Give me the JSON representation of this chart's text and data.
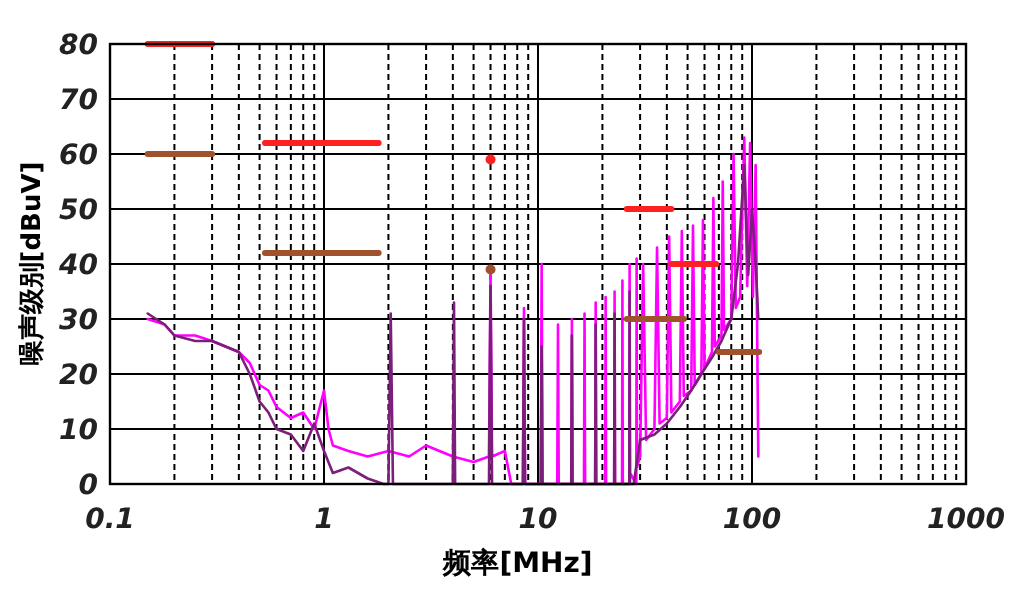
{
  "chart_data": {
    "type": "line",
    "xlabel": "频率[MHz]",
    "ylabel": "噪声级别[dBuV]",
    "log": "x",
    "grid": true,
    "xlim": [
      0.1,
      1000
    ],
    "ylim": [
      0,
      80
    ],
    "xticks": [
      0.1,
      {
        "value": 0.2,
        "label": null
      },
      {
        "value": 0.3,
        "label": null
      },
      {
        "value": 0.4,
        "label": null
      },
      {
        "value": 0.5,
        "label": null
      },
      {
        "value": 0.6,
        "label": null
      },
      {
        "value": 0.7,
        "label": null
      },
      {
        "value": 0.8,
        "label": null
      },
      {
        "value": 0.9,
        "label": null
      },
      1,
      {
        "value": 2,
        "label": null
      },
      {
        "value": 3,
        "label": null
      },
      {
        "value": 4,
        "label": null
      },
      {
        "value": 5,
        "label": null
      },
      {
        "value": 6,
        "label": null
      },
      {
        "value": 7,
        "label": null
      },
      {
        "value": 8,
        "label": null
      },
      {
        "value": 9,
        "label": null
      },
      10,
      {
        "value": 20,
        "label": null
      },
      {
        "value": 30,
        "label": null
      },
      {
        "value": 40,
        "label": null
      },
      {
        "value": 50,
        "label": null
      },
      {
        "value": 60,
        "label": null
      },
      {
        "value": 70,
        "label": null
      },
      {
        "value": 80,
        "label": null
      },
      {
        "value": 90,
        "label": null
      },
      100,
      {
        "value": 200,
        "label": null
      },
      {
        "value": 300,
        "label": null
      },
      {
        "value": 400,
        "label": null
      },
      {
        "value": 500,
        "label": null
      },
      {
        "value": 600,
        "label": null
      },
      {
        "value": 700,
        "label": null
      },
      {
        "value": 800,
        "label": null
      },
      {
        "value": 900,
        "label": null
      },
      1000
    ],
    "yticks": [
      0,
      10,
      20,
      30,
      40,
      50,
      60,
      70,
      80
    ],
    "series": [
      {
        "color": "#ff00ff",
        "x": [
          0.15,
          0.18,
          0.2,
          0.25,
          0.3,
          0.4,
          0.45,
          0.5,
          0.55,
          0.6,
          0.7,
          0.8,
          0.9,
          1.0,
          1.05,
          1.1,
          1.3,
          1.6,
          2.0,
          2.5,
          3,
          4,
          5,
          5.9,
          6.0,
          6.1,
          7,
          7.5,
          8.5,
          8.6,
          8.7,
          10.3,
          10.4,
          10.5,
          12.3,
          12.4,
          12.5,
          14.3,
          14.4,
          14.5,
          16.4,
          16.5,
          16.6,
          18.5,
          18.6,
          18.7,
          20.6,
          20.7,
          20.8,
          22.7,
          22.8,
          22.9,
          24.7,
          24.8,
          24.9,
          26.7,
          26.8,
          26.9,
          28.8,
          28.9,
          29,
          30,
          31,
          32,
          35,
          36,
          37,
          40,
          41,
          42,
          46,
          47,
          48,
          52,
          53,
          54,
          58,
          59,
          60,
          65,
          66,
          67,
          72,
          73,
          74,
          80,
          82,
          84,
          88,
          92,
          95,
          98,
          101,
          104,
          107
        ],
        "values": [
          30,
          29,
          27,
          27,
          26,
          24,
          22,
          18,
          17,
          14,
          12,
          13,
          10,
          17,
          10,
          7,
          6,
          5,
          6,
          5,
          7,
          5,
          4,
          5,
          38,
          5,
          6,
          0,
          0,
          32,
          0,
          0,
          40,
          0,
          0,
          29,
          0,
          0,
          30,
          0,
          0,
          31,
          0,
          0,
          33,
          0,
          0,
          34,
          0,
          0,
          35,
          0,
          0,
          37,
          0,
          0,
          40,
          2,
          0,
          41,
          3,
          5,
          40,
          8,
          10,
          43,
          11,
          12,
          45,
          13,
          15,
          46,
          16,
          17,
          47,
          18,
          20,
          48,
          21,
          24,
          52,
          25,
          27,
          55,
          28,
          30,
          60,
          32,
          34,
          63,
          36,
          62,
          34,
          58,
          5
        ]
      },
      {
        "color": "#7b1f7b",
        "x": [
          0.15,
          0.18,
          0.2,
          0.25,
          0.3,
          0.4,
          0.45,
          0.5,
          0.55,
          0.6,
          0.7,
          0.8,
          0.9,
          1.0,
          1.1,
          1.3,
          1.6,
          1.9,
          2.0,
          2.05,
          2.1,
          4.0,
          4.05,
          4.1,
          5.9,
          6.0,
          6.1,
          8.5,
          8.6,
          8.7,
          10.3,
          10.4,
          10.5,
          14.3,
          14.4,
          14.5,
          18.5,
          18.6,
          18.7,
          22.7,
          22.8,
          22.9,
          26.7,
          26.8,
          26.9,
          28,
          30,
          35,
          40,
          46,
          52,
          58,
          65,
          72,
          80,
          86,
          92,
          96,
          100,
          104,
          107
        ],
        "values": [
          31,
          29,
          27,
          26,
          26,
          24,
          20,
          15,
          13,
          10,
          9,
          6,
          11,
          6,
          2,
          3,
          1,
          0,
          0,
          31,
          0,
          0,
          33,
          0,
          0,
          36,
          0,
          0,
          30,
          0,
          0,
          25,
          0,
          0,
          27,
          0,
          0,
          29,
          0,
          0,
          31,
          0,
          0,
          35,
          0,
          0,
          8,
          9,
          11,
          14,
          17,
          20,
          23,
          26,
          30,
          40,
          58,
          38,
          50,
          40,
          30
        ]
      },
      {
        "color": "#ff2020",
        "x": [
          0.15,
          0.3
        ],
        "values": [
          80,
          80
        ]
      },
      {
        "color": "#ff2020",
        "x": [
          0.53,
          1.8
        ],
        "values": [
          62,
          62
        ]
      },
      {
        "color": "#ff2020",
        "x": [
          26,
          42
        ],
        "values": [
          50,
          50
        ]
      },
      {
        "color": "#ff2020",
        "x": [
          42,
          68
        ],
        "values": [
          40,
          40
        ]
      },
      {
        "color": "#a0522d",
        "x": [
          0.15,
          0.3
        ],
        "values": [
          60,
          60
        ]
      },
      {
        "color": "#a0522d",
        "x": [
          0.53,
          1.8
        ],
        "values": [
          42,
          42
        ]
      },
      {
        "color": "#a0522d",
        "x": [
          26,
          48
        ],
        "values": [
          30,
          30
        ]
      },
      {
        "color": "#a0522d",
        "x": [
          70,
          108
        ],
        "values": [
          24,
          24
        ]
      },
      {
        "type": "scatter",
        "marker": "circle",
        "color": "#ff2020",
        "x": [
          6.0
        ],
        "values": [
          59
        ]
      },
      {
        "type": "scatter",
        "marker": "circle",
        "color": "#a0522d",
        "x": [
          6.0
        ],
        "values": [
          39
        ]
      }
    ]
  }
}
